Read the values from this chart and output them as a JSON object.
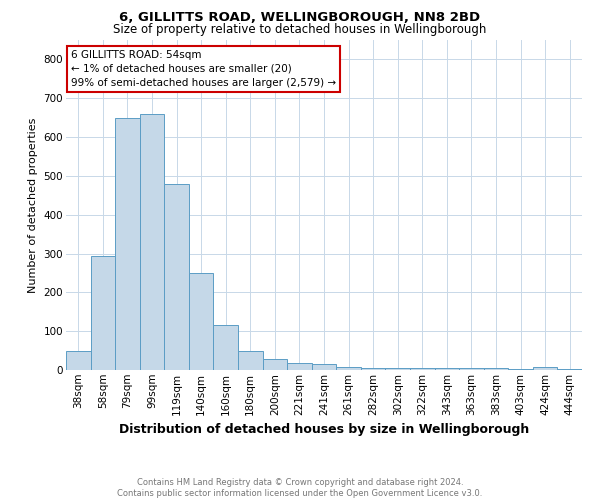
{
  "title": "6, GILLITTS ROAD, WELLINGBOROUGH, NN8 2BD",
  "subtitle": "Size of property relative to detached houses in Wellingborough",
  "xlabel": "Distribution of detached houses by size in Wellingborough",
  "ylabel": "Number of detached properties",
  "footer_line1": "Contains HM Land Registry data © Crown copyright and database right 2024.",
  "footer_line2": "Contains public sector information licensed under the Open Government Licence v3.0.",
  "categories": [
    "38sqm",
    "58sqm",
    "79sqm",
    "99sqm",
    "119sqm",
    "140sqm",
    "160sqm",
    "180sqm",
    "200sqm",
    "221sqm",
    "241sqm",
    "261sqm",
    "282sqm",
    "302sqm",
    "322sqm",
    "343sqm",
    "363sqm",
    "383sqm",
    "403sqm",
    "424sqm",
    "444sqm"
  ],
  "values": [
    48,
    293,
    650,
    660,
    478,
    250,
    115,
    50,
    28,
    17,
    15,
    8,
    6,
    5,
    5,
    5,
    5,
    5,
    2,
    8,
    2
  ],
  "bar_color": "#c5d8e8",
  "bar_edge_color": "#5b9dc5",
  "annotation_line1": "6 GILLITTS ROAD: 54sqm",
  "annotation_line2": "← 1% of detached houses are smaller (20)",
  "annotation_line3": "99% of semi-detached houses are larger (2,579) →",
  "annotation_box_color": "#ffffff",
  "annotation_border_color": "#cc0000",
  "ylim": [
    0,
    850
  ],
  "yticks": [
    0,
    100,
    200,
    300,
    400,
    500,
    600,
    700,
    800
  ],
  "background_color": "#ffffff",
  "grid_color": "#c8d8e8",
  "title_fontsize": 9.5,
  "subtitle_fontsize": 8.5,
  "xlabel_fontsize": 9,
  "ylabel_fontsize": 8,
  "tick_fontsize": 7.5,
  "footer_fontsize": 6.0,
  "footer_color": "#777777"
}
